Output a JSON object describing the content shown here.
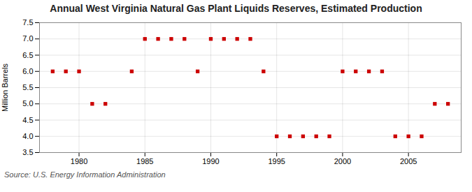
{
  "chart_data": {
    "type": "scatter",
    "title": "Annual West Virginia Natural Gas Plant Liquids Reserves, Estimated Production",
    "y_label": "Million Barrels",
    "annotation": "Source: U.S. Energy Information Administration",
    "x": [
      1978,
      1979,
      1980,
      1981,
      1982,
      1984,
      1985,
      1986,
      1987,
      1988,
      1989,
      1990,
      1991,
      1992,
      1993,
      1994,
      1995,
      1996,
      1997,
      1998,
      1999,
      2000,
      2001,
      2002,
      2003,
      2004,
      2005,
      2006,
      2007,
      2008
    ],
    "values": [
      6.0,
      6.0,
      6.0,
      5.0,
      5.0,
      6.0,
      7.0,
      7.0,
      7.0,
      7.0,
      6.0,
      7.0,
      7.0,
      7.0,
      7.0,
      6.0,
      4.0,
      4.0,
      4.0,
      4.0,
      4.0,
      6.0,
      6.0,
      6.0,
      6.0,
      4.0,
      4.0,
      4.0,
      5.0,
      5.0
    ],
    "color": "#cc0000",
    "marker": "square",
    "xlim": [
      1977,
      2009
    ],
    "xticks": [
      1980,
      1985,
      1990,
      1995,
      2000,
      2005
    ],
    "ylim": [
      3.5,
      7.5
    ],
    "yticks": [
      3.5,
      {
        "value": 4,
        "label": "4.0"
      },
      4.5,
      {
        "value": 5,
        "label": "5.0"
      },
      5.5,
      {
        "value": 6,
        "label": "6.0"
      },
      6.5,
      {
        "value": 7,
        "label": "7.0"
      },
      7.5
    ],
    "grid": true
  }
}
